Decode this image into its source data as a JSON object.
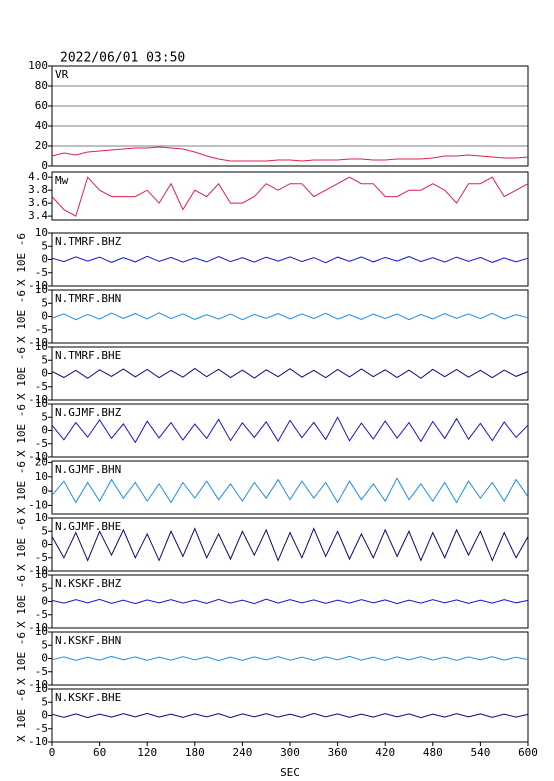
{
  "chart_data": [
    {
      "type": "line",
      "title": "2022/06/01 03:50",
      "xlim": [
        0,
        600
      ],
      "ylim": [
        0,
        100
      ],
      "yticks": [
        0,
        20,
        40,
        60,
        80,
        100
      ],
      "grid": true,
      "x": [
        0,
        15,
        30,
        45,
        60,
        75,
        90,
        105,
        120,
        135,
        150,
        165,
        180,
        195,
        210,
        225,
        240,
        255,
        270,
        285,
        300,
        315,
        330,
        345,
        360,
        375,
        390,
        405,
        420,
        435,
        450,
        465,
        480,
        495,
        510,
        525,
        540,
        555,
        570,
        585,
        600
      ],
      "series": [
        {
          "name": "VR",
          "color": "#e0204a",
          "values": [
            10,
            13,
            11,
            14,
            15,
            16,
            17,
            18,
            18,
            19,
            18,
            17,
            14,
            10,
            7,
            5,
            5,
            5,
            5,
            6,
            6,
            5,
            6,
            6,
            6,
            7,
            7,
            6,
            6,
            7,
            7,
            7,
            8,
            10,
            10,
            11,
            10,
            9,
            8,
            8,
            9
          ]
        }
      ]
    },
    {
      "type": "line",
      "xlim": [
        0,
        600
      ],
      "ylim": [
        3.34,
        4.08
      ],
      "yticks": [
        {
          "value": 3.4,
          "label": "3.4"
        },
        {
          "value": 3.6,
          "label": "3.6"
        },
        {
          "value": 3.8,
          "label": "3.8"
        },
        {
          "value": 4,
          "label": "4.0"
        }
      ],
      "grid": false,
      "x": [
        0,
        15,
        30,
        45,
        60,
        75,
        90,
        105,
        120,
        135,
        150,
        165,
        180,
        195,
        210,
        225,
        240,
        255,
        270,
        285,
        300,
        315,
        330,
        345,
        360,
        375,
        390,
        405,
        420,
        435,
        450,
        465,
        480,
        495,
        510,
        525,
        540,
        555,
        570,
        585,
        600
      ],
      "series": [
        {
          "name": "Mw",
          "color": "#e0204a",
          "values": [
            3.7,
            3.5,
            3.4,
            4.0,
            3.8,
            3.7,
            3.7,
            3.7,
            3.8,
            3.6,
            3.9,
            3.5,
            3.8,
            3.7,
            3.9,
            3.6,
            3.6,
            3.7,
            3.9,
            3.8,
            3.9,
            3.9,
            3.7,
            3.8,
            3.9,
            4.0,
            3.9,
            3.9,
            3.7,
            3.7,
            3.8,
            3.8,
            3.9,
            3.8,
            3.6,
            3.9,
            3.9,
            4.0,
            3.7,
            3.8,
            3.9
          ]
        }
      ]
    },
    {
      "type": "line",
      "ylabel": "X 10E -6",
      "xlim": [
        0,
        600
      ],
      "ylim": [
        -10,
        10
      ],
      "yticks": [
        -10,
        -5,
        0,
        5,
        10
      ],
      "grid": false,
      "x": [
        0,
        15,
        30,
        45,
        60,
        75,
        90,
        105,
        120,
        135,
        150,
        165,
        180,
        195,
        210,
        225,
        240,
        255,
        270,
        285,
        300,
        315,
        330,
        345,
        360,
        375,
        390,
        405,
        420,
        435,
        450,
        465,
        480,
        495,
        510,
        525,
        540,
        555,
        570,
        585,
        600
      ],
      "series": [
        {
          "name": "N.TMRF.BHZ",
          "color": "#1414d8",
          "values": [
            0.5,
            -0.8,
            1,
            -0.6,
            0.9,
            -1.1,
            0.7,
            -0.9,
            1.2,
            -0.7,
            0.8,
            -1,
            0.6,
            -0.9,
            1.1,
            -0.8,
            0.7,
            -1,
            0.9,
            -0.6,
            1,
            -0.8,
            0.7,
            -1.2,
            0.9,
            -0.7,
            1,
            -0.9,
            0.8,
            -0.6,
            1.1,
            -0.8,
            0.7,
            -1,
            0.9,
            -0.7,
            0.8,
            -1.1,
            0.6,
            -0.9,
            0.5
          ]
        }
      ]
    },
    {
      "type": "line",
      "ylabel": "X 10E -6",
      "xlim": [
        0,
        600
      ],
      "ylim": [
        -10,
        10
      ],
      "yticks": [
        -10,
        -5,
        0,
        5,
        10
      ],
      "grid": false,
      "x": [
        0,
        15,
        30,
        45,
        60,
        75,
        90,
        105,
        120,
        135,
        150,
        165,
        180,
        195,
        210,
        225,
        240,
        255,
        270,
        285,
        300,
        315,
        330,
        345,
        360,
        375,
        390,
        405,
        420,
        435,
        450,
        465,
        480,
        495,
        510,
        525,
        540,
        555,
        570,
        585,
        600
      ],
      "series": [
        {
          "name": "N.TMRF.BHN",
          "color": "#1e8ff0",
          "values": [
            -0.6,
            1,
            -1.2,
            0.8,
            -1,
            1.3,
            -0.7,
            1.1,
            -0.9,
            1.4,
            -0.8,
            1,
            -1.1,
            0.7,
            -1,
            0.9,
            -1.2,
            0.8,
            -0.7,
            1.1,
            -0.9,
            1,
            -0.8,
            1.2,
            -1,
            0.7,
            -1.1,
            0.9,
            -0.8,
            1,
            -1.2,
            0.8,
            -0.9,
            1.1,
            -0.7,
            1,
            -0.8,
            1.2,
            -0.9,
            0.7,
            -0.5
          ]
        }
      ]
    },
    {
      "type": "line",
      "ylabel": "X 10E -6",
      "xlim": [
        0,
        600
      ],
      "ylim": [
        -10,
        10
      ],
      "yticks": [
        -10,
        -5,
        0,
        5,
        10
      ],
      "grid": false,
      "x": [
        0,
        15,
        30,
        45,
        60,
        75,
        90,
        105,
        120,
        135,
        150,
        165,
        180,
        195,
        210,
        225,
        240,
        255,
        270,
        285,
        300,
        315,
        330,
        345,
        360,
        375,
        390,
        405,
        420,
        435,
        450,
        465,
        480,
        495,
        510,
        525,
        540,
        555,
        570,
        585,
        600
      ],
      "series": [
        {
          "name": "N.TMRF.BHE",
          "color": "#0a0a78",
          "values": [
            0.8,
            -1.5,
            1.2,
            -1.8,
            1.4,
            -1.1,
            1.7,
            -1.3,
            1.5,
            -1.6,
            1.2,
            -1.4,
            1.9,
            -1.2,
            1.6,
            -1.5,
            1.3,
            -1.7,
            1.4,
            -1.2,
            1.8,
            -1.4,
            1.2,
            -1.6,
            1.5,
            -1.3,
            1.7,
            -1.2,
            1.4,
            -1.5,
            1.3,
            -1.8,
            1.6,
            -1.2,
            1.5,
            -1.4,
            1.2,
            -1.6,
            1.3,
            -1.1,
            0.7
          ]
        }
      ]
    },
    {
      "type": "line",
      "ylabel": "X 10E -6",
      "xlim": [
        0,
        600
      ],
      "ylim": [
        -10,
        10
      ],
      "yticks": [
        -10,
        -5,
        0,
        5,
        10
      ],
      "grid": false,
      "x": [
        0,
        15,
        30,
        45,
        60,
        75,
        90,
        105,
        120,
        135,
        150,
        165,
        180,
        195,
        210,
        225,
        240,
        255,
        270,
        285,
        300,
        315,
        330,
        345,
        360,
        375,
        390,
        405,
        420,
        435,
        450,
        465,
        480,
        495,
        510,
        525,
        540,
        555,
        570,
        585,
        600
      ],
      "series": [
        {
          "name": "N.GJMF.BHZ",
          "color": "#1414d8",
          "values": [
            2,
            -3.5,
            3,
            -2.5,
            4,
            -3,
            2.5,
            -4.5,
            3.5,
            -2.8,
            3,
            -3.6,
            2.4,
            -3,
            4.2,
            -3.8,
            2.9,
            -2.6,
            3.3,
            -4,
            3.8,
            -2.7,
            3.1,
            -3.4,
            5,
            -3.9,
            2.8,
            -3.2,
            3.6,
            -2.9,
            3,
            -4.1,
            3.4,
            -3,
            4.5,
            -3.3,
            2.7,
            -3.8,
            3.2,
            -2.6,
            2
          ]
        }
      ]
    },
    {
      "type": "line",
      "ylabel": "X 10E -6",
      "xlim": [
        0,
        600
      ],
      "ylim": [
        -16,
        21
      ],
      "yticks": [
        -10,
        0,
        10,
        20
      ],
      "grid": false,
      "x": [
        0,
        15,
        30,
        45,
        60,
        75,
        90,
        105,
        120,
        135,
        150,
        165,
        180,
        195,
        210,
        225,
        240,
        255,
        270,
        285,
        300,
        315,
        330,
        345,
        360,
        375,
        390,
        405,
        420,
        435,
        450,
        465,
        480,
        495,
        510,
        525,
        540,
        555,
        570,
        585,
        600
      ],
      "series": [
        {
          "name": "N.GJMF.BHN",
          "color": "#1e8ff0",
          "values": [
            -3,
            7,
            -8,
            6,
            -7,
            8,
            -5,
            6,
            -7,
            5,
            -8,
            6,
            -5,
            7,
            -6,
            5,
            -7,
            6,
            -5,
            8,
            -6,
            7,
            -5,
            6,
            -8,
            7,
            -6,
            5,
            -7,
            9,
            -6,
            5,
            -7,
            6,
            -8,
            7,
            -5,
            6,
            -7,
            8,
            -4
          ]
        }
      ]
    },
    {
      "type": "line",
      "ylabel": "X 10E -6",
      "xlim": [
        0,
        600
      ],
      "ylim": [
        -10,
        10
      ],
      "yticks": [
        -10,
        -5,
        0,
        5,
        10
      ],
      "grid": false,
      "x": [
        0,
        15,
        30,
        45,
        60,
        75,
        90,
        105,
        120,
        135,
        150,
        165,
        180,
        195,
        210,
        225,
        240,
        255,
        270,
        285,
        300,
        315,
        330,
        345,
        360,
        375,
        390,
        405,
        420,
        435,
        450,
        465,
        480,
        495,
        510,
        525,
        540,
        555,
        570,
        585,
        600
      ],
      "series": [
        {
          "name": "N.GJMF.BHE",
          "color": "#0a0a78",
          "values": [
            3,
            -5,
            4.5,
            -6,
            5,
            -4,
            5.5,
            -5,
            4,
            -6,
            5,
            -4.5,
            6,
            -5,
            4,
            -5.5,
            5,
            -4,
            5.5,
            -6,
            4.5,
            -5,
            6,
            -4.5,
            5,
            -5.5,
            4,
            -5,
            5.5,
            -4.5,
            5,
            -6,
            4.5,
            -5,
            5.5,
            -4,
            5,
            -6,
            4.5,
            -5,
            3
          ]
        }
      ]
    },
    {
      "type": "line",
      "ylabel": "X 10E -6",
      "xlim": [
        0,
        600
      ],
      "ylim": [
        -10,
        10
      ],
      "yticks": [
        -10,
        -5,
        0,
        5,
        10
      ],
      "grid": false,
      "x": [
        0,
        15,
        30,
        45,
        60,
        75,
        90,
        105,
        120,
        135,
        150,
        165,
        180,
        195,
        210,
        225,
        240,
        255,
        270,
        285,
        300,
        315,
        330,
        345,
        360,
        375,
        390,
        405,
        420,
        435,
        450,
        465,
        480,
        495,
        510,
        525,
        540,
        555,
        570,
        585,
        600
      ],
      "series": [
        {
          "name": "N.KSKF.BHZ",
          "color": "#1414d8",
          "values": [
            0.4,
            -0.6,
            0.7,
            -0.5,
            0.8,
            -0.7,
            0.5,
            -0.8,
            0.6,
            -0.5,
            0.7,
            -0.6,
            0.5,
            -0.7,
            0.8,
            -0.6,
            0.5,
            -0.8,
            0.9,
            -0.6,
            0.7,
            -0.5,
            0.6,
            -0.7,
            0.5,
            -0.6,
            0.7,
            -0.5,
            0.6,
            -0.8,
            0.5,
            -0.6,
            0.7,
            -0.5,
            0.6,
            -0.7,
            0.5,
            -0.6,
            0.7,
            -0.5,
            0.4
          ]
        }
      ]
    },
    {
      "type": "line",
      "ylabel": "X 10E -6",
      "xlim": [
        0,
        600
      ],
      "ylim": [
        -10,
        10
      ],
      "yticks": [
        -10,
        -5,
        0,
        5,
        10
      ],
      "grid": false,
      "x": [
        0,
        15,
        30,
        45,
        60,
        75,
        90,
        105,
        120,
        135,
        150,
        165,
        180,
        195,
        210,
        225,
        240,
        255,
        270,
        285,
        300,
        315,
        330,
        345,
        360,
        375,
        390,
        405,
        420,
        435,
        450,
        465,
        480,
        495,
        510,
        525,
        540,
        555,
        570,
        585,
        600
      ],
      "series": [
        {
          "name": "N.KSKF.BHN",
          "color": "#1e8ff0",
          "values": [
            -0.5,
            0.6,
            -0.7,
            0.5,
            -0.6,
            0.8,
            -0.5,
            0.6,
            -0.7,
            0.5,
            -0.6,
            0.7,
            -0.5,
            0.6,
            -0.8,
            0.5,
            -0.7,
            0.6,
            -0.5,
            0.7,
            -0.6,
            0.5,
            -0.7,
            0.6,
            -0.5,
            0.8,
            -0.6,
            0.5,
            -0.7,
            0.6,
            -0.5,
            0.7,
            -0.6,
            0.5,
            -0.7,
            0.6,
            -0.5,
            0.7,
            -0.6,
            0.5,
            -0.4
          ]
        }
      ]
    },
    {
      "type": "line",
      "ylabel": "X 10E -6",
      "xlabel": "SEC",
      "xlim": [
        0,
        600
      ],
      "ylim": [
        -10,
        10
      ],
      "yticks": [
        -10,
        -5,
        0,
        5,
        10
      ],
      "xticks": [
        0,
        60,
        120,
        180,
        240,
        300,
        360,
        420,
        480,
        540,
        600
      ],
      "grid": false,
      "x": [
        0,
        15,
        30,
        45,
        60,
        75,
        90,
        105,
        120,
        135,
        150,
        165,
        180,
        195,
        210,
        225,
        240,
        255,
        270,
        285,
        300,
        315,
        330,
        345,
        360,
        375,
        390,
        405,
        420,
        435,
        450,
        465,
        480,
        495,
        510,
        525,
        540,
        555,
        570,
        585,
        600
      ],
      "series": [
        {
          "name": "N.KSKF.BHE",
          "color": "#0a0a78",
          "values": [
            0.5,
            -0.7,
            0.6,
            -0.8,
            0.5,
            -0.6,
            0.7,
            -0.5,
            0.8,
            -0.6,
            0.5,
            -0.7,
            0.6,
            -0.5,
            0.7,
            -0.8,
            0.6,
            -0.5,
            0.7,
            -0.6,
            0.5,
            -0.7,
            0.8,
            -0.5,
            0.6,
            -0.7,
            0.5,
            -0.6,
            0.7,
            -0.5,
            0.6,
            -0.8,
            0.5,
            -0.6,
            0.7,
            -0.5,
            0.6,
            -0.7,
            0.5,
            -0.6,
            0.4
          ]
        }
      ]
    }
  ]
}
